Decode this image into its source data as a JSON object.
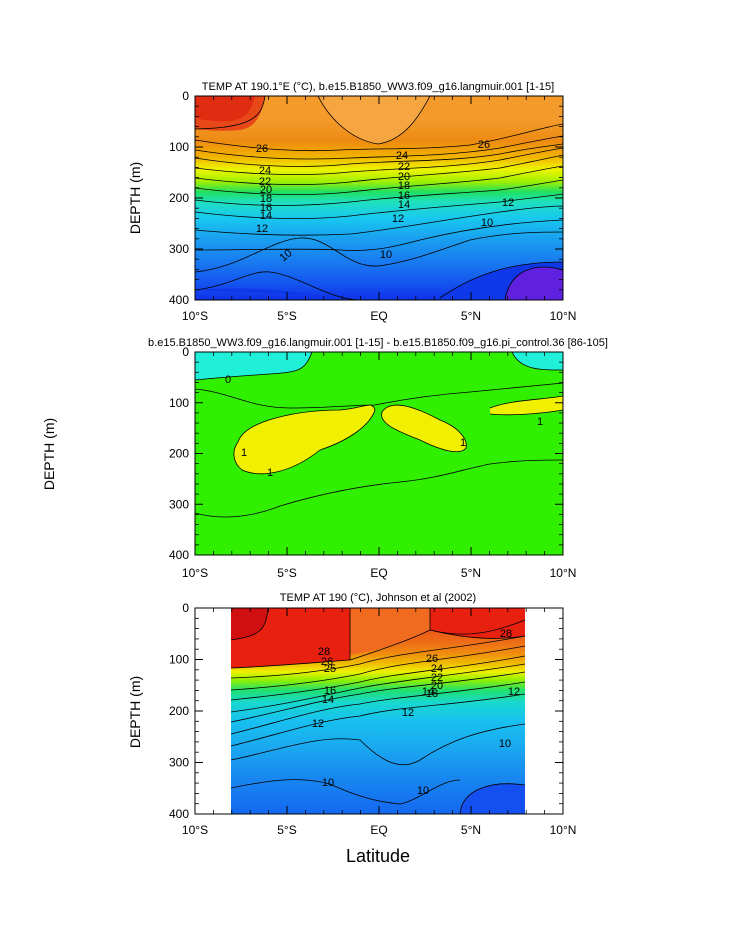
{
  "figure": {
    "xlabel": "Latitude",
    "x_tick_labels": [
      "10°S",
      "5°S",
      "EQ",
      "5°N",
      "10°N"
    ]
  },
  "chart_data": [
    {
      "type": "heatmap",
      "subtype": "filled-contour",
      "title": "TEMP AT 190.1°E (°C), b.e15.B1850_WW3.f09_g16.langmuir.001 [1-15]",
      "xlabel": "",
      "ylabel": "DEPTH (m)",
      "xlim": [
        -10,
        10
      ],
      "ylim": [
        0,
        400
      ],
      "x_ticks": [
        -10,
        -5,
        0,
        5,
        10
      ],
      "y_ticks": [
        0,
        100,
        200,
        300,
        400
      ],
      "contour_labels": [
        "26",
        "26",
        "24",
        "24",
        "22",
        "22",
        "20",
        "20",
        "18",
        "18",
        "16",
        "16",
        "14",
        "14",
        "12",
        "12",
        "12",
        "10",
        "10",
        "10"
      ]
    },
    {
      "type": "heatmap",
      "subtype": "filled-contour",
      "title": "b.e15.B1850_WW3.f09_g16.langmuir.001 [1-15] - b.e15.B1850.f09_g16.pi_control.36 [86-105]",
      "xlabel": "",
      "ylabel": "DEPTH (m)",
      "xlim": [
        -10,
        10
      ],
      "ylim": [
        0,
        400
      ],
      "x_ticks": [
        -10,
        -5,
        0,
        5,
        10
      ],
      "y_ticks": [
        0,
        100,
        200,
        300,
        400
      ],
      "contour_labels": [
        "0",
        "1",
        "1",
        "1",
        "1"
      ]
    },
    {
      "type": "heatmap",
      "subtype": "filled-contour",
      "title": "TEMP AT 190 (°C), Johnson et al (2002)",
      "xlabel": "Latitude",
      "ylabel": "DEPTH (m)",
      "xlim": [
        -10,
        10
      ],
      "ylim": [
        0,
        400
      ],
      "data_xlim": [
        -8,
        8
      ],
      "x_ticks": [
        -10,
        -5,
        0,
        5,
        10
      ],
      "y_ticks": [
        0,
        100,
        200,
        300,
        400
      ],
      "contour_labels": [
        "28",
        "28",
        "26",
        "26",
        "24",
        "22",
        "20",
        "18",
        "16",
        "14",
        "14",
        "12",
        "12",
        "12",
        "10",
        "10",
        "10",
        "25"
      ]
    }
  ]
}
